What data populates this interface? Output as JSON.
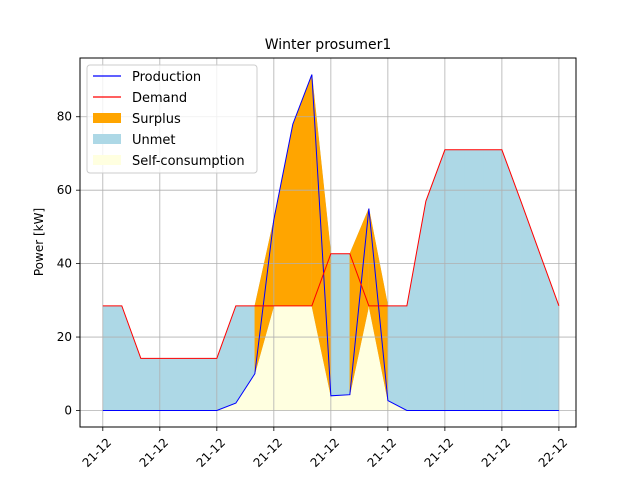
{
  "chart_data": {
    "type": "area",
    "title": "Winter prosumer1",
    "xlabel": "",
    "ylabel": "Power [kW]",
    "x": [
      0,
      1,
      2,
      3,
      4,
      5,
      6,
      7,
      8,
      9,
      10,
      11,
      12,
      13,
      14,
      15,
      16,
      17,
      18,
      19,
      20,
      21,
      22,
      23,
      24
    ],
    "xlim": [
      -1.2,
      24.9
    ],
    "ylim": [
      -4.5,
      96
    ],
    "grid": true,
    "legend_position": "top-left",
    "x_ticks": [
      {
        "x": 0,
        "label": "21-12"
      },
      {
        "x": 3,
        "label": "21-12"
      },
      {
        "x": 6,
        "label": "21-12"
      },
      {
        "x": 9,
        "label": "21-12"
      },
      {
        "x": 12,
        "label": "21-12"
      },
      {
        "x": 15,
        "label": "21-12"
      },
      {
        "x": 18,
        "label": "21-12"
      },
      {
        "x": 21,
        "label": "21-12"
      },
      {
        "x": 24,
        "label": "22-12"
      }
    ],
    "y_ticks": [
      {
        "y": 0,
        "label": "0"
      },
      {
        "y": 20,
        "label": "20"
      },
      {
        "y": 40,
        "label": "40"
      },
      {
        "y": 60,
        "label": "60"
      },
      {
        "y": 80,
        "label": "80"
      }
    ],
    "series": [
      {
        "name": "Production",
        "color": "#0000ff",
        "values": [
          0,
          0,
          0,
          0,
          0,
          0,
          0,
          2,
          10,
          52,
          78,
          91.5,
          4,
          4.3,
          55,
          2.7,
          0,
          0,
          0,
          0,
          0,
          0,
          0,
          0,
          0
        ]
      },
      {
        "name": "Demand",
        "color": "#ff0000",
        "values": [
          28.5,
          28.5,
          14.2,
          14.2,
          14.2,
          14.2,
          14.2,
          28.5,
          28.5,
          28.5,
          28.5,
          28.5,
          42.7,
          42.7,
          28.5,
          28.5,
          28.5,
          57,
          71,
          71,
          71,
          71,
          57,
          42.7,
          28.5
        ]
      }
    ],
    "fills": [
      {
        "name": "Surplus",
        "color": "#ffa500"
      },
      {
        "name": "Unmet",
        "color": "#add8e6"
      },
      {
        "name": "Self-consumption",
        "color": "#ffffe0"
      }
    ]
  }
}
